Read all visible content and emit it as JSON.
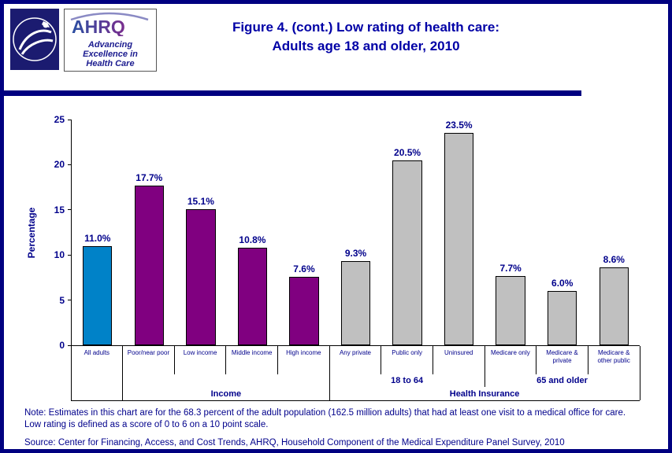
{
  "header": {
    "ahrq_acronym": "AHRQ",
    "ahrq_tagline_lines": [
      "Advancing",
      "Excellence in",
      "Health Care"
    ],
    "title_line1": "Figure 4. (cont.) Low rating of health care:",
    "title_line2": "Adults age 18 and older, 2010"
  },
  "chart_data": {
    "type": "bar",
    "title": "Figure 4. (cont.) Low rating of health care: Adults age 18 and older, 2010",
    "xlabel": "",
    "ylabel": "Percentage",
    "ylim": [
      0,
      25
    ],
    "yticks": [
      0,
      5,
      10,
      15,
      20,
      25
    ],
    "grid": false,
    "legend": "none",
    "categories": [
      "All adults",
      "Poor/near poor",
      "Low income",
      "Middle income",
      "High income",
      "Any private",
      "Public only",
      "Uninsured",
      "Medicare only",
      "Medicare & private",
      "Medicare & other public"
    ],
    "values": [
      11.0,
      17.7,
      15.1,
      10.8,
      7.6,
      9.3,
      20.5,
      23.5,
      7.7,
      6.0,
      8.6
    ],
    "value_labels": [
      "11.0%",
      "17.7%",
      "15.1%",
      "10.8%",
      "7.6%",
      "9.3%",
      "20.5%",
      "23.5%",
      "7.7%",
      "6.0%",
      "8.6%"
    ],
    "bar_colors": [
      "#0082C8",
      "#800080",
      "#800080",
      "#800080",
      "#800080",
      "#C0C0C0",
      "#C0C0C0",
      "#C0C0C0",
      "#C0C0C0",
      "#C0C0C0",
      "#C0C0C0"
    ],
    "axis_groups": {
      "level2": [
        {
          "label": "18 to 64",
          "start": 5,
          "end": 7
        },
        {
          "label": "65 and older",
          "start": 8,
          "end": 10
        }
      ],
      "level3": [
        {
          "label": "Income",
          "start": 1,
          "end": 4
        },
        {
          "label": "Health Insurance",
          "start": 5,
          "end": 10
        }
      ]
    }
  },
  "notes": {
    "note_line1": "Note:  Estimates in this chart are for the 68.3 percent of the adult population (162.5 million adults) that had at least one visit to  a medical office for care.",
    "note_line2": "Low rating is defined as a score of 0 to 6 on a 10 point scale.",
    "source": "Source: Center for Financing, Access, and Cost Trends, AHRQ, Household Component of the Medical Expenditure Panel Survey,  2010"
  }
}
